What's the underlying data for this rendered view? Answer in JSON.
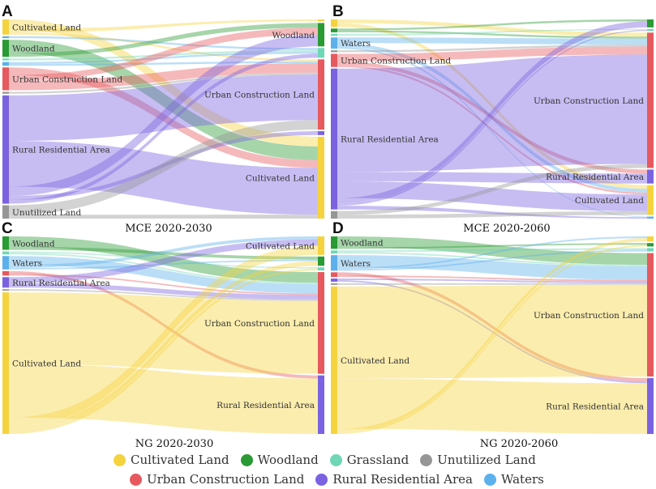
{
  "colors": {
    "cultivated": "#f5d33f",
    "woodland": "#2a9a34",
    "grassland": "#6fd7b6",
    "unutilized": "#969696",
    "urban": "#e6595e",
    "rural": "#7a62e0",
    "waters": "#5cb0ec"
  },
  "legend": [
    {
      "key": "cultivated",
      "label": "Cultivated Land"
    },
    {
      "key": "woodland",
      "label": "Woodland"
    },
    {
      "key": "grassland",
      "label": "Grassland"
    },
    {
      "key": "unutilized",
      "label": "Unutilized Land"
    },
    {
      "key": "urban",
      "label": "Urban Construction Land"
    },
    {
      "key": "rural",
      "label": "Rural Residential Area"
    },
    {
      "key": "waters",
      "label": "Waters"
    }
  ],
  "panels": [
    {
      "id": "A",
      "title": "MCE 2020-2030",
      "left": [
        {
          "key": "cultivated",
          "weight": 8,
          "label": "Cultivated Land"
        },
        {
          "key": "waters",
          "weight": 1,
          "label": ""
        },
        {
          "key": "woodland",
          "weight": 9,
          "label": "Woodland"
        },
        {
          "key": "grassland",
          "weight": 1,
          "label": ""
        },
        {
          "key": "waters",
          "weight": 2,
          "label": ""
        },
        {
          "key": "urban",
          "weight": 12,
          "label": "Urban Construction Land"
        },
        {
          "key": "unutilized",
          "weight": 1,
          "label": ""
        },
        {
          "key": "rural",
          "weight": 57,
          "label": "Rural Residential Area"
        },
        {
          "key": "unutilized",
          "weight": 7,
          "label": "Unutilized Land"
        }
      ],
      "right": [
        {
          "key": "cultivated",
          "weight": 1,
          "label": ""
        },
        {
          "key": "woodland",
          "weight": 12,
          "label": "Woodland"
        },
        {
          "key": "grassland",
          "weight": 5,
          "label": ""
        },
        {
          "key": "urban",
          "weight": 36,
          "label": "Urban Construction Land"
        },
        {
          "key": "rural",
          "weight": 2,
          "label": ""
        },
        {
          "key": "cultivated",
          "weight": 42,
          "label": "Cultivated Land"
        }
      ],
      "links": [
        {
          "from": 0,
          "to": 5,
          "value": 5
        },
        {
          "from": 0,
          "to": 0,
          "value": 2
        },
        {
          "from": 0,
          "to": 3,
          "value": 1
        },
        {
          "from": 1,
          "to": 2,
          "value": 1
        },
        {
          "from": 2,
          "to": 5,
          "value": 7
        },
        {
          "from": 2,
          "to": 1,
          "value": 2
        },
        {
          "from": 3,
          "to": 2,
          "value": 1
        },
        {
          "from": 4,
          "to": 2,
          "value": 1
        },
        {
          "from": 4,
          "to": 3,
          "value": 1
        },
        {
          "from": 5,
          "to": 5,
          "value": 4
        },
        {
          "from": 5,
          "to": 1,
          "value": 3
        },
        {
          "from": 5,
          "to": 3,
          "value": 5
        },
        {
          "from": 6,
          "to": 3,
          "value": 1
        },
        {
          "from": 7,
          "to": 3,
          "value": 24
        },
        {
          "from": 7,
          "to": 5,
          "value": 24
        },
        {
          "from": 7,
          "to": 1,
          "value": 5
        },
        {
          "from": 7,
          "to": 4,
          "value": 2
        },
        {
          "from": 7,
          "to": 2,
          "value": 2
        },
        {
          "from": 8,
          "to": 3,
          "value": 5
        },
        {
          "from": 8,
          "to": 5,
          "value": 2
        }
      ]
    },
    {
      "id": "B",
      "title": "MCE 2020-2060",
      "left": [
        {
          "key": "cultivated",
          "weight": 4,
          "label": ""
        },
        {
          "key": "woodland",
          "weight": 2,
          "label": ""
        },
        {
          "key": "grassland",
          "weight": 1,
          "label": ""
        },
        {
          "key": "waters",
          "weight": 6,
          "label": "Waters"
        },
        {
          "key": "unutilized",
          "weight": 1,
          "label": ""
        },
        {
          "key": "urban",
          "weight": 7,
          "label": "Urban Construction Land"
        },
        {
          "key": "rural",
          "weight": 75,
          "label": "Rural Residential Area"
        },
        {
          "key": "unutilized",
          "weight": 4,
          "label": ""
        }
      ],
      "right": [
        {
          "key": "woodland",
          "weight": 4,
          "label": ""
        },
        {
          "key": "grassland",
          "weight": 1,
          "label": ""
        },
        {
          "key": "urban",
          "weight": 68,
          "label": "Urban Construction Land"
        },
        {
          "key": "rural",
          "weight": 7,
          "label": "Rural Residential Area"
        },
        {
          "key": "cultivated",
          "weight": 15,
          "label": "Cultivated Land"
        },
        {
          "key": "waters",
          "weight": 1,
          "label": ""
        }
      ],
      "links": [
        {
          "from": 0,
          "to": 2,
          "value": 2
        },
        {
          "from": 0,
          "to": 4,
          "value": 2
        },
        {
          "from": 1,
          "to": 0,
          "value": 1
        },
        {
          "from": 1,
          "to": 2,
          "value": 1
        },
        {
          "from": 2,
          "to": 1,
          "value": 1
        },
        {
          "from": 3,
          "to": 2,
          "value": 3
        },
        {
          "from": 3,
          "to": 4,
          "value": 2
        },
        {
          "from": 3,
          "to": 5,
          "value": 1
        },
        {
          "from": 4,
          "to": 2,
          "value": 1
        },
        {
          "from": 5,
          "to": 2,
          "value": 4
        },
        {
          "from": 5,
          "to": 3,
          "value": 2
        },
        {
          "from": 5,
          "to": 4,
          "value": 1
        },
        {
          "from": 6,
          "to": 2,
          "value": 55
        },
        {
          "from": 6,
          "to": 3,
          "value": 5
        },
        {
          "from": 6,
          "to": 4,
          "value": 9
        },
        {
          "from": 6,
          "to": 0,
          "value": 3
        },
        {
          "from": 6,
          "to": 1,
          "value": 1
        },
        {
          "from": 6,
          "to": 5,
          "value": 2
        },
        {
          "from": 7,
          "to": 2,
          "value": 2
        },
        {
          "from": 7,
          "to": 4,
          "value": 2
        }
      ]
    },
    {
      "id": "C",
      "title": "NG 2020-2030",
      "left": [
        {
          "key": "woodland",
          "weight": 9,
          "label": "Woodland"
        },
        {
          "key": "grassland",
          "weight": 2,
          "label": ""
        },
        {
          "key": "waters",
          "weight": 9,
          "label": "Waters"
        },
        {
          "key": "urban",
          "weight": 3,
          "label": ""
        },
        {
          "key": "rural",
          "weight": 7,
          "label": "Rural Residential Area"
        },
        {
          "key": "unutilized",
          "weight": 1,
          "label": ""
        },
        {
          "key": "cultivated",
          "weight": 95,
          "label": "Cultivated Land"
        }
      ],
      "right": [
        {
          "key": "cultivated",
          "weight": 12,
          "label": "Cultivated Land"
        },
        {
          "key": "woodland",
          "weight": 6,
          "label": ""
        },
        {
          "key": "grassland",
          "weight": 2,
          "label": ""
        },
        {
          "key": "urban",
          "weight": 66,
          "label": "Urban Construction Land"
        },
        {
          "key": "rural",
          "weight": 38,
          "label": "Rural Residential Area"
        }
      ],
      "links": [
        {
          "from": 0,
          "to": 3,
          "value": 7
        },
        {
          "from": 0,
          "to": 1,
          "value": 2
        },
        {
          "from": 1,
          "to": 2,
          "value": 1
        },
        {
          "from": 1,
          "to": 3,
          "value": 1
        },
        {
          "from": 2,
          "to": 3,
          "value": 6
        },
        {
          "from": 2,
          "to": 0,
          "value": 2
        },
        {
          "from": 2,
          "to": 1,
          "value": 1
        },
        {
          "from": 3,
          "to": 4,
          "value": 2
        },
        {
          "from": 3,
          "to": 3,
          "value": 1
        },
        {
          "from": 4,
          "to": 0,
          "value": 4
        },
        {
          "from": 4,
          "to": 3,
          "value": 3
        },
        {
          "from": 5,
          "to": 3,
          "value": 1
        },
        {
          "from": 6,
          "to": 3,
          "value": 48
        },
        {
          "from": 6,
          "to": 4,
          "value": 36
        },
        {
          "from": 6,
          "to": 0,
          "value": 6
        },
        {
          "from": 6,
          "to": 1,
          "value": 3
        },
        {
          "from": 6,
          "to": 2,
          "value": 2
        }
      ]
    },
    {
      "id": "D",
      "title": "NG 2020-2060",
      "left": [
        {
          "key": "woodland",
          "weight": 8,
          "label": "Woodland"
        },
        {
          "key": "grassland",
          "weight": 2,
          "label": ""
        },
        {
          "key": "waters",
          "weight": 10,
          "label": "Waters"
        },
        {
          "key": "urban",
          "weight": 3,
          "label": ""
        },
        {
          "key": "rural",
          "weight": 2,
          "label": ""
        },
        {
          "key": "unutilized",
          "weight": 1,
          "label": ""
        },
        {
          "key": "cultivated",
          "weight": 95,
          "label": "Cultivated Land"
        }
      ],
      "right": [
        {
          "key": "cultivated",
          "weight": 3,
          "label": ""
        },
        {
          "key": "woodland",
          "weight": 2,
          "label": ""
        },
        {
          "key": "grassland",
          "weight": 2,
          "label": ""
        },
        {
          "key": "urban",
          "weight": 73,
          "label": "Urban Construction Land"
        },
        {
          "key": "rural",
          "weight": 33,
          "label": "Rural Residential Area"
        }
      ],
      "links": [
        {
          "from": 0,
          "to": 3,
          "value": 7
        },
        {
          "from": 0,
          "to": 1,
          "value": 1
        },
        {
          "from": 1,
          "to": 2,
          "value": 1
        },
        {
          "from": 1,
          "to": 3,
          "value": 1
        },
        {
          "from": 2,
          "to": 3,
          "value": 8
        },
        {
          "from": 2,
          "to": 0,
          "value": 1
        },
        {
          "from": 2,
          "to": 2,
          "value": 1
        },
        {
          "from": 3,
          "to": 4,
          "value": 2
        },
        {
          "from": 3,
          "to": 3,
          "value": 1
        },
        {
          "from": 4,
          "to": 3,
          "value": 1
        },
        {
          "from": 4,
          "to": 4,
          "value": 1
        },
        {
          "from": 5,
          "to": 3,
          "value": 1
        },
        {
          "from": 6,
          "to": 3,
          "value": 55
        },
        {
          "from": 6,
          "to": 4,
          "value": 30
        },
        {
          "from": 6,
          "to": 0,
          "value": 2
        },
        {
          "from": 6,
          "to": 1,
          "value": 1
        }
      ]
    }
  ]
}
